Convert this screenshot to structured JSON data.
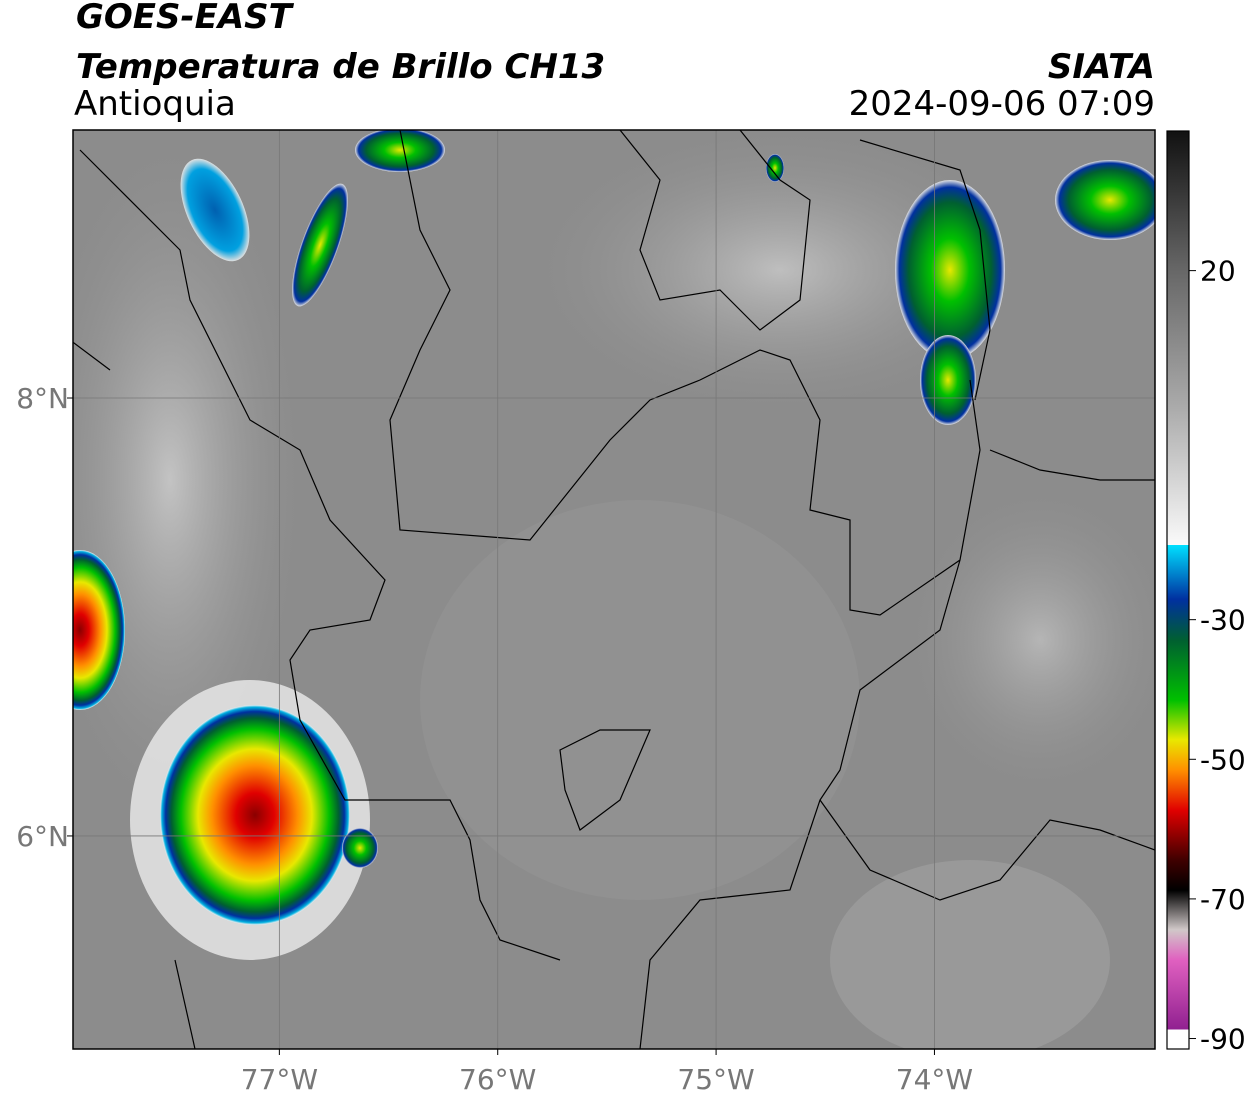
{
  "header": {
    "title": "GOES-EAST",
    "subtitle": "Temperatura de Brillo CH13",
    "region": "Antioquia",
    "source": "SIATA",
    "datetime": "2024-09-06 07:09"
  },
  "map": {
    "xlim": [
      -77.945,
      -72.99
    ],
    "ylim": [
      5.027,
      9.224
    ],
    "xticks": [
      {
        "value": -77,
        "label": "77°W"
      },
      {
        "value": -76,
        "label": "76°W"
      },
      {
        "value": -75,
        "label": "75°W"
      },
      {
        "value": -74,
        "label": "74°W"
      }
    ],
    "yticks": [
      {
        "value": 8,
        "label": "8°N"
      },
      {
        "value": 6,
        "label": "6°N"
      }
    ]
  },
  "colorbar": {
    "lim": [
      -91.5,
      40
    ],
    "ticks": [
      20,
      -30,
      -50,
      -70,
      -90
    ]
  }
}
